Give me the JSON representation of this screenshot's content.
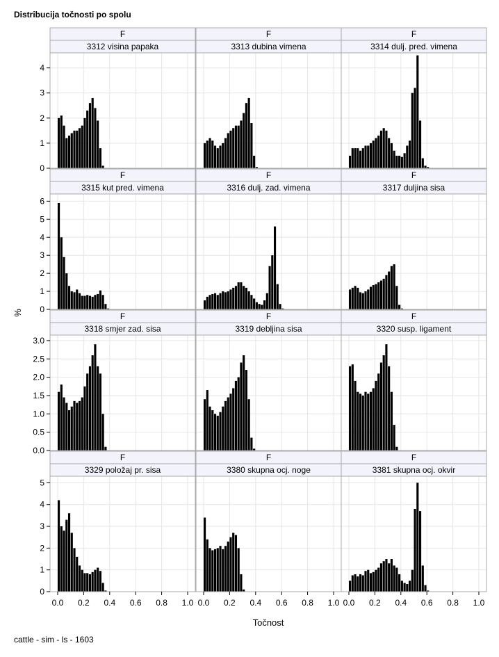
{
  "chart_data": {
    "type": "bar",
    "layout": "panel-grid",
    "title": "Distribucija točnosti po spolu",
    "xlabel": "Točnost",
    "ylabel": "%",
    "footnote": "cattle - sim - ls - 1603",
    "xlim": [
      0,
      1.0
    ],
    "xticks": [
      "0.0",
      "0.2",
      "0.4",
      "0.6",
      "0.8",
      "1.0"
    ],
    "panels": [
      {
        "sex": "F",
        "name": "3312 visina papaka",
        "x": [
          0.0,
          0.02,
          0.04,
          0.06,
          0.08,
          0.1,
          0.12,
          0.14,
          0.16,
          0.18,
          0.2,
          0.22,
          0.24,
          0.26,
          0.28,
          0.3,
          0.32,
          0.34
        ],
        "values": [
          2.0,
          2.1,
          1.7,
          1.2,
          1.3,
          1.4,
          1.5,
          1.5,
          1.6,
          1.7,
          2.0,
          2.3,
          2.6,
          2.8,
          2.4,
          1.9,
          0.8,
          0.1
        ]
      },
      {
        "sex": "F",
        "name": "3313 dubina vimena",
        "x": [
          0.0,
          0.02,
          0.04,
          0.06,
          0.08,
          0.1,
          0.12,
          0.14,
          0.16,
          0.18,
          0.2,
          0.22,
          0.24,
          0.26,
          0.28,
          0.3,
          0.32,
          0.34,
          0.36,
          0.38,
          0.4
        ],
        "values": [
          1.0,
          1.1,
          1.2,
          1.1,
          0.9,
          0.8,
          0.9,
          1.0,
          1.2,
          1.4,
          1.5,
          1.6,
          1.7,
          1.7,
          1.9,
          2.2,
          2.6,
          2.8,
          1.8,
          0.5,
          0.05
        ]
      },
      {
        "sex": "F",
        "name": "3314 dulj. pred. vimena",
        "x": [
          0.0,
          0.02,
          0.04,
          0.06,
          0.08,
          0.1,
          0.12,
          0.14,
          0.16,
          0.18,
          0.2,
          0.22,
          0.24,
          0.26,
          0.28,
          0.3,
          0.32,
          0.34,
          0.36,
          0.38,
          0.4,
          0.42,
          0.44,
          0.46,
          0.48,
          0.5,
          0.52,
          0.54,
          0.56,
          0.58,
          0.6
        ],
        "values": [
          0.5,
          0.8,
          0.8,
          0.8,
          0.7,
          0.8,
          0.9,
          0.9,
          1.0,
          1.1,
          1.2,
          1.3,
          1.5,
          1.6,
          1.5,
          1.2,
          1.0,
          0.7,
          0.5,
          0.5,
          0.45,
          0.6,
          0.9,
          1.1,
          3.0,
          3.2,
          4.5,
          1.9,
          0.4,
          0.1,
          0.05
        ]
      },
      {
        "sex": "F",
        "name": "3315 kut pred. vimena",
        "x": [
          0.0,
          0.02,
          0.04,
          0.06,
          0.08,
          0.1,
          0.12,
          0.14,
          0.16,
          0.18,
          0.2,
          0.22,
          0.24,
          0.26,
          0.28,
          0.3,
          0.32,
          0.34,
          0.36,
          0.38
        ],
        "values": [
          5.9,
          4.0,
          2.9,
          2.0,
          1.3,
          1.0,
          0.95,
          1.1,
          0.9,
          0.75,
          0.75,
          0.8,
          0.75,
          0.7,
          0.8,
          0.85,
          1.05,
          0.8,
          0.3,
          0.05
        ]
      },
      {
        "sex": "F",
        "name": "3316 dulj. zad. vimena",
        "x": [
          0.0,
          0.02,
          0.04,
          0.06,
          0.08,
          0.1,
          0.12,
          0.14,
          0.16,
          0.18,
          0.2,
          0.22,
          0.24,
          0.26,
          0.28,
          0.3,
          0.32,
          0.34,
          0.36,
          0.38,
          0.4,
          0.42,
          0.44,
          0.46,
          0.48,
          0.5,
          0.52,
          0.54,
          0.56,
          0.58,
          0.6
        ],
        "values": [
          0.5,
          0.7,
          0.8,
          0.85,
          0.9,
          0.8,
          0.9,
          1.0,
          0.95,
          1.0,
          1.1,
          1.2,
          1.3,
          1.5,
          1.5,
          1.3,
          1.2,
          1.0,
          0.8,
          0.6,
          0.4,
          0.3,
          0.25,
          0.5,
          0.9,
          2.4,
          3.0,
          4.6,
          1.4,
          0.3,
          0.05
        ]
      },
      {
        "sex": "F",
        "name": "3317 duljina sisa",
        "x": [
          0.0,
          0.02,
          0.04,
          0.06,
          0.08,
          0.1,
          0.12,
          0.14,
          0.16,
          0.18,
          0.2,
          0.22,
          0.24,
          0.26,
          0.28,
          0.3,
          0.32,
          0.34,
          0.36,
          0.38,
          0.4
        ],
        "values": [
          1.1,
          1.2,
          1.3,
          1.2,
          0.95,
          0.9,
          1.0,
          1.1,
          1.25,
          1.35,
          1.4,
          1.5,
          1.6,
          1.7,
          1.9,
          2.1,
          2.4,
          2.5,
          1.3,
          0.25,
          0.05
        ]
      },
      {
        "sex": "F",
        "name": "3318 smjer zad. sisa",
        "x": [
          0.0,
          0.02,
          0.04,
          0.06,
          0.08,
          0.1,
          0.12,
          0.14,
          0.16,
          0.18,
          0.2,
          0.22,
          0.24,
          0.26,
          0.28,
          0.3,
          0.32,
          0.34,
          0.36
        ],
        "values": [
          1.6,
          1.8,
          1.45,
          1.3,
          1.1,
          1.2,
          1.35,
          1.3,
          1.35,
          1.45,
          1.75,
          2.1,
          2.3,
          2.6,
          2.9,
          2.3,
          2.1,
          1.0,
          0.1
        ]
      },
      {
        "sex": "F",
        "name": "3319 debljina sisa",
        "x": [
          0.0,
          0.02,
          0.04,
          0.06,
          0.08,
          0.1,
          0.12,
          0.14,
          0.16,
          0.18,
          0.2,
          0.22,
          0.24,
          0.26,
          0.28,
          0.3,
          0.32,
          0.34,
          0.36,
          0.38
        ],
        "values": [
          1.4,
          1.65,
          1.2,
          1.1,
          1.0,
          0.95,
          1.05,
          1.2,
          1.35,
          1.45,
          1.55,
          1.7,
          1.9,
          2.0,
          2.4,
          2.6,
          2.2,
          1.4,
          0.35,
          0.05
        ]
      },
      {
        "sex": "F",
        "name": "3320 susp. ligament",
        "x": [
          0.0,
          0.02,
          0.04,
          0.06,
          0.08,
          0.1,
          0.12,
          0.14,
          0.16,
          0.18,
          0.2,
          0.22,
          0.24,
          0.26,
          0.28,
          0.3,
          0.32,
          0.34,
          0.36
        ],
        "values": [
          2.3,
          2.35,
          1.9,
          1.6,
          1.55,
          1.5,
          1.6,
          1.55,
          1.6,
          1.7,
          1.9,
          2.1,
          2.4,
          2.6,
          2.9,
          2.3,
          1.6,
          0.7,
          0.1
        ]
      },
      {
        "sex": "F",
        "name": "3329 položaj pr. sisa",
        "x": [
          0.0,
          0.02,
          0.04,
          0.06,
          0.08,
          0.1,
          0.12,
          0.14,
          0.16,
          0.18,
          0.2,
          0.22,
          0.24,
          0.26,
          0.28,
          0.3,
          0.32,
          0.34,
          0.36
        ],
        "values": [
          4.2,
          3.0,
          2.8,
          3.3,
          3.6,
          2.7,
          2.0,
          1.6,
          1.2,
          1.0,
          0.85,
          0.85,
          0.8,
          0.9,
          1.0,
          1.1,
          0.95,
          0.4,
          0.05
        ]
      },
      {
        "sex": "F",
        "name": "3380 skupna ocj. noge",
        "x": [
          0.0,
          0.02,
          0.04,
          0.06,
          0.08,
          0.1,
          0.12,
          0.14,
          0.16,
          0.18,
          0.2,
          0.22,
          0.24,
          0.26,
          0.28,
          0.3
        ],
        "values": [
          3.4,
          2.4,
          2.0,
          1.9,
          1.95,
          2.0,
          2.1,
          1.95,
          2.1,
          2.3,
          2.5,
          2.7,
          2.6,
          2.0,
          0.8,
          0.1
        ]
      },
      {
        "sex": "F",
        "name": "3381 skupna ocj. okvir",
        "x": [
          0.0,
          0.02,
          0.04,
          0.06,
          0.08,
          0.1,
          0.12,
          0.14,
          0.16,
          0.18,
          0.2,
          0.22,
          0.24,
          0.26,
          0.28,
          0.3,
          0.32,
          0.34,
          0.36,
          0.38,
          0.4,
          0.42,
          0.44,
          0.46,
          0.48,
          0.5,
          0.52,
          0.54,
          0.56,
          0.58,
          0.6
        ],
        "values": [
          0.5,
          0.75,
          0.8,
          0.7,
          0.8,
          0.75,
          0.95,
          1.0,
          0.85,
          0.9,
          1.0,
          1.1,
          1.3,
          1.4,
          1.5,
          1.3,
          1.5,
          1.2,
          1.1,
          0.8,
          0.5,
          0.4,
          0.35,
          0.5,
          1.0,
          3.8,
          5.0,
          3.7,
          1.2,
          0.3,
          0.05
        ]
      }
    ],
    "row_yaxes": [
      {
        "ylim": [
          0,
          4.6
        ],
        "ticks": [
          "0",
          "1",
          "2",
          "3",
          "4"
        ]
      },
      {
        "ylim": [
          0,
          6.4
        ],
        "ticks": [
          "0",
          "1",
          "2",
          "3",
          "4",
          "5",
          "6"
        ]
      },
      {
        "ylim": [
          0,
          3.15
        ],
        "ticks": [
          "0.0",
          "0.5",
          "1.0",
          "1.5",
          "2.0",
          "2.5",
          "3.0"
        ]
      },
      {
        "ylim": [
          0,
          5.3
        ],
        "ticks": [
          "0",
          "1",
          "2",
          "3",
          "4",
          "5"
        ]
      }
    ],
    "grid": true,
    "colors": {
      "bar": "#000000",
      "grid": "#e6e6e6",
      "header_bg": "#f3f4fb",
      "frame": "#a9a9a9"
    }
  }
}
